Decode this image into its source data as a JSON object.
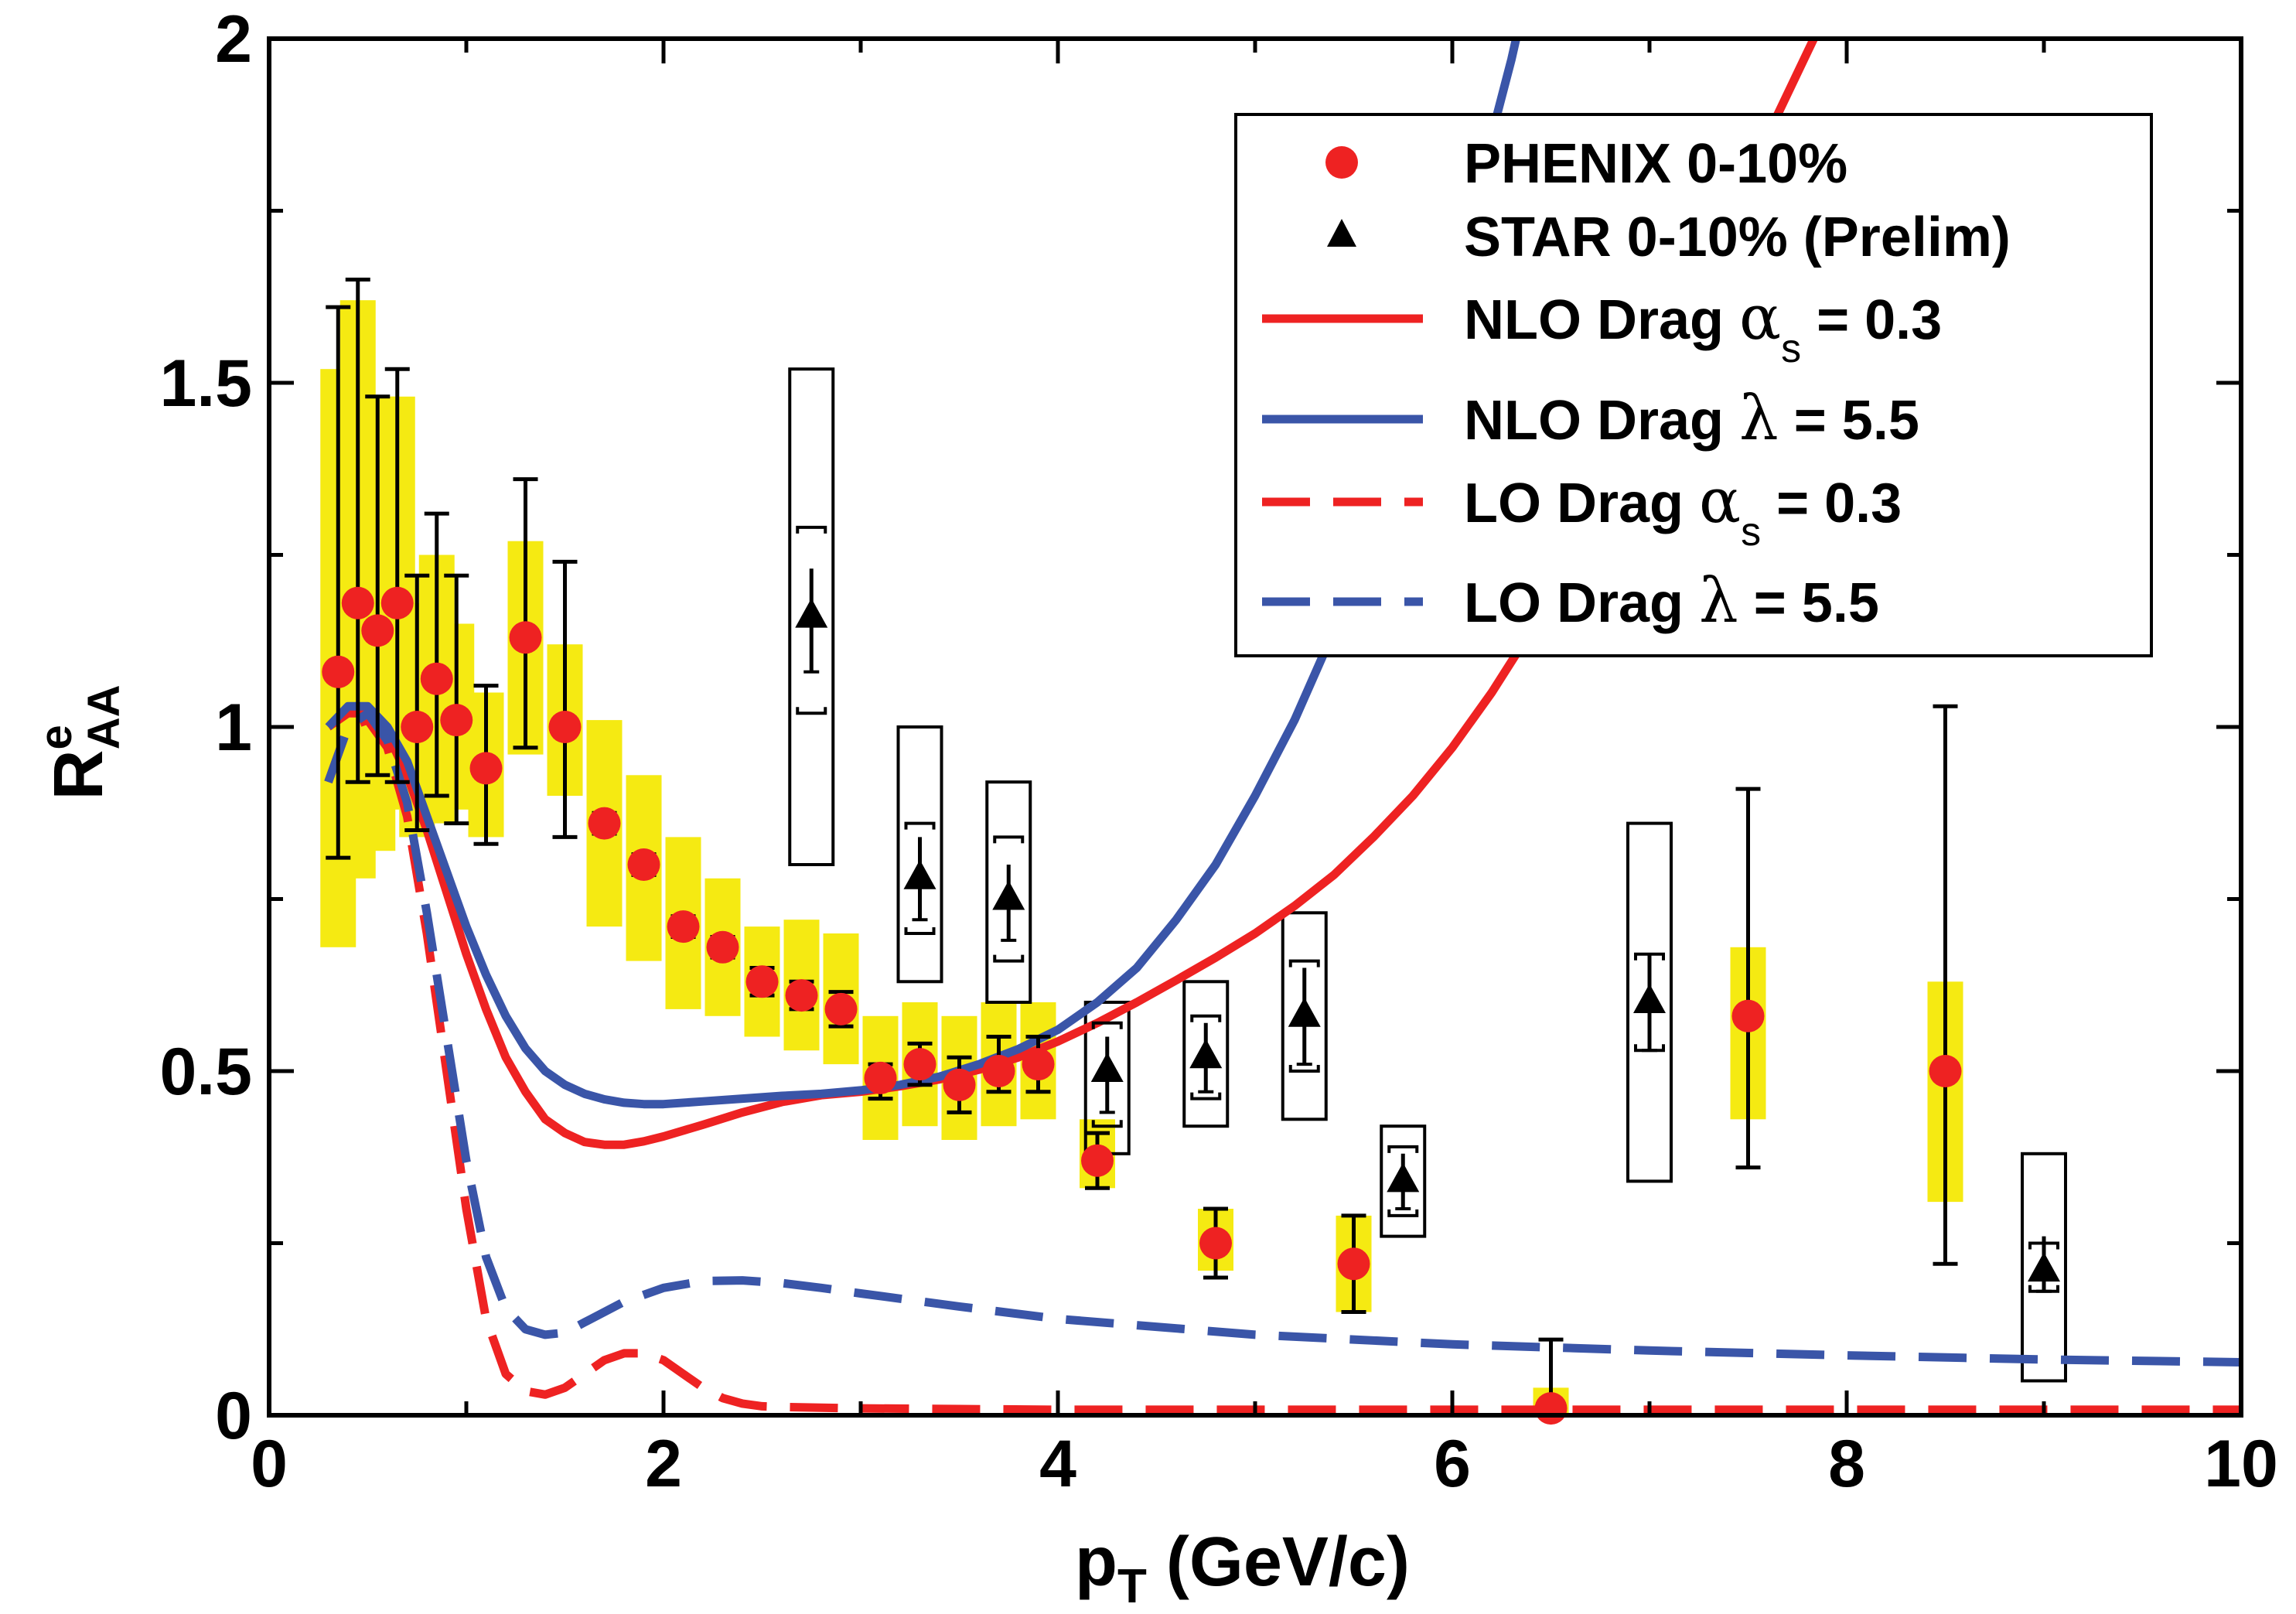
{
  "chart_data": {
    "type": "scatter",
    "title": "",
    "xlabel": {
      "main": "p",
      "sub": "T",
      "rest": " (GeV/c)"
    },
    "ylabel": {
      "main": "R",
      "sup": "e",
      "sub": "AA"
    },
    "xlim": [
      0,
      10
    ],
    "ylim": [
      0,
      2
    ],
    "xticks": [
      0,
      2,
      4,
      6,
      8,
      10
    ],
    "xtick_labels": [
      "0",
      "2",
      "4",
      "6",
      "8",
      "10"
    ],
    "yticks": [
      0,
      0.5,
      1,
      1.5,
      2
    ],
    "ytick_labels": [
      "0",
      "0.5",
      "1",
      "1.5",
      "2"
    ],
    "grid": false,
    "legend_position": "top-right",
    "colors": {
      "red": "#ee2222",
      "blue": "#3a55a8",
      "yellow": "#f5ea12",
      "black": "#000000"
    },
    "legend": [
      {
        "label": "PHENIX 0-10%",
        "marker": "circle",
        "color": "#ee2222"
      },
      {
        "label": "STAR 0-10% (Prelim)",
        "marker": "triangle",
        "color": "#000000"
      },
      {
        "label": "NLO Drag ",
        "greek": "α",
        "greek_sub": "s",
        "suffix": " = 0.3",
        "line": "solid",
        "color": "#ee2222"
      },
      {
        "label": "NLO Drag ",
        "greek": "λ",
        "suffix": " = 5.5",
        "line": "solid",
        "color": "#3a55a8"
      },
      {
        "label": "LO Drag ",
        "greek": "α",
        "greek_sub": "s",
        "suffix": " = 0.3",
        "line": "dashed",
        "color": "#ee2222"
      },
      {
        "label": "LO Drag ",
        "greek": "λ",
        "suffix": " = 5.5",
        "line": "dashed",
        "color": "#3a55a8"
      }
    ],
    "phenix": [
      {
        "x": 0.35,
        "y": 1.08,
        "stat": [
          0.81,
          1.61
        ],
        "sys": [
          0.68,
          1.52
        ]
      },
      {
        "x": 0.45,
        "y": 1.18,
        "stat": [
          0.92,
          1.65
        ],
        "sys": [
          0.78,
          1.62
        ]
      },
      {
        "x": 0.55,
        "y": 1.14,
        "stat": [
          0.93,
          1.48
        ],
        "sys": [
          0.82,
          1.48
        ]
      },
      {
        "x": 0.65,
        "y": 1.18,
        "stat": [
          0.92,
          1.52
        ],
        "sys": [
          0.88,
          1.48
        ]
      },
      {
        "x": 0.75,
        "y": 1.0,
        "stat": [
          0.85,
          1.22
        ],
        "sys": [
          0.84,
          1.18
        ]
      },
      {
        "x": 0.85,
        "y": 1.07,
        "stat": [
          0.9,
          1.31
        ],
        "sys": [
          0.86,
          1.25
        ]
      },
      {
        "x": 0.95,
        "y": 1.01,
        "stat": [
          0.86,
          1.22
        ],
        "sys": [
          0.88,
          1.15
        ]
      },
      {
        "x": 1.1,
        "y": 0.94,
        "stat": [
          0.83,
          1.06
        ],
        "sys": [
          0.84,
          1.05
        ]
      },
      {
        "x": 1.3,
        "y": 1.13,
        "stat": [
          0.97,
          1.36
        ],
        "sys": [
          0.96,
          1.27
        ]
      },
      {
        "x": 1.5,
        "y": 1.0,
        "stat": [
          0.84,
          1.24
        ],
        "sys": [
          0.9,
          1.12
        ]
      },
      {
        "x": 1.7,
        "y": 0.86,
        "stat": [
          0.845,
          0.875
        ],
        "sys": [
          0.71,
          1.01
        ]
      },
      {
        "x": 1.9,
        "y": 0.8,
        "stat": [
          0.785,
          0.815
        ],
        "sys": [
          0.66,
          0.93
        ]
      },
      {
        "x": 2.1,
        "y": 0.71,
        "stat": [
          0.695,
          0.725
        ],
        "sys": [
          0.59,
          0.84
        ]
      },
      {
        "x": 2.3,
        "y": 0.68,
        "stat": [
          0.665,
          0.695
        ],
        "sys": [
          0.58,
          0.78
        ]
      },
      {
        "x": 2.5,
        "y": 0.63,
        "stat": [
          0.61,
          0.65
        ],
        "sys": [
          0.55,
          0.71
        ]
      },
      {
        "x": 2.7,
        "y": 0.61,
        "stat": [
          0.59,
          0.63
        ],
        "sys": [
          0.53,
          0.72
        ]
      },
      {
        "x": 2.9,
        "y": 0.59,
        "stat": [
          0.565,
          0.615
        ],
        "sys": [
          0.51,
          0.7
        ]
      },
      {
        "x": 3.1,
        "y": 0.49,
        "stat": [
          0.46,
          0.51
        ],
        "sys": [
          0.4,
          0.58
        ]
      },
      {
        "x": 3.3,
        "y": 0.51,
        "stat": [
          0.48,
          0.54
        ],
        "sys": [
          0.42,
          0.6
        ]
      },
      {
        "x": 3.5,
        "y": 0.48,
        "stat": [
          0.44,
          0.52
        ],
        "sys": [
          0.4,
          0.58
        ]
      },
      {
        "x": 3.7,
        "y": 0.5,
        "stat": [
          0.47,
          0.55
        ],
        "sys": [
          0.42,
          0.6
        ]
      },
      {
        "x": 3.9,
        "y": 0.51,
        "stat": [
          0.47,
          0.55
        ],
        "sys": [
          0.43,
          0.6
        ]
      },
      {
        "x": 4.2,
        "y": 0.37,
        "stat": [
          0.33,
          0.41
        ],
        "sys": [
          0.33,
          0.43
        ]
      },
      {
        "x": 4.8,
        "y": 0.25,
        "stat": [
          0.2,
          0.3
        ],
        "sys": [
          0.21,
          0.3
        ]
      },
      {
        "x": 5.5,
        "y": 0.22,
        "stat": [
          0.15,
          0.29
        ],
        "sys": [
          0.15,
          0.29
        ]
      },
      {
        "x": 6.5,
        "y": 0.01,
        "stat": [
          0.0,
          0.11
        ],
        "sys": [
          0.0,
          0.04
        ]
      },
      {
        "x": 7.5,
        "y": 0.58,
        "stat": [
          0.36,
          0.91
        ],
        "sys": [
          0.43,
          0.68
        ]
      },
      {
        "x": 8.5,
        "y": 0.5,
        "stat": [
          0.22,
          1.03
        ],
        "sys": [
          0.31,
          0.63
        ]
      }
    ],
    "star": [
      {
        "x": 2.75,
        "y": 1.16,
        "stat": [
          1.08,
          1.23
        ],
        "sys": [
          1.02,
          1.29
        ],
        "box": [
          0.8,
          1.52
        ]
      },
      {
        "x": 3.3,
        "y": 0.78,
        "stat": [
          0.72,
          0.84
        ],
        "sys": [
          0.7,
          0.86
        ],
        "box": [
          0.63,
          1.0
        ]
      },
      {
        "x": 3.75,
        "y": 0.75,
        "stat": [
          0.69,
          0.8
        ],
        "sys": [
          0.66,
          0.84
        ],
        "box": [
          0.6,
          0.92
        ]
      },
      {
        "x": 4.25,
        "y": 0.5,
        "stat": [
          0.44,
          0.55
        ],
        "sys": [
          0.42,
          0.57
        ],
        "box": [
          0.38,
          0.6
        ]
      },
      {
        "x": 4.75,
        "y": 0.52,
        "stat": [
          0.47,
          0.57
        ],
        "sys": [
          0.46,
          0.58
        ],
        "box": [
          0.42,
          0.63
        ]
      },
      {
        "x": 5.25,
        "y": 0.58,
        "stat": [
          0.51,
          0.65
        ],
        "sys": [
          0.5,
          0.66
        ],
        "box": [
          0.43,
          0.73
        ]
      },
      {
        "x": 5.75,
        "y": 0.34,
        "stat": [
          0.3,
          0.38
        ],
        "sys": [
          0.29,
          0.39
        ],
        "box": [
          0.26,
          0.42
        ]
      },
      {
        "x": 7.0,
        "y": 0.6,
        "stat": [
          0.53,
          0.67
        ],
        "sys": [
          0.53,
          0.67
        ],
        "box": [
          0.34,
          0.86
        ]
      },
      {
        "x": 9.0,
        "y": 0.21,
        "stat": [
          0.18,
          0.26
        ],
        "sys": [
          0.18,
          0.25
        ],
        "box": [
          0.05,
          0.38
        ]
      }
    ],
    "curves": [
      {
        "name": "NLO Drag alpha_s = 0.3",
        "style": "solid",
        "color": "#ee2222",
        "x": [
          0.3,
          0.4,
          0.5,
          0.6,
          0.7,
          0.8,
          0.9,
          1.0,
          1.1,
          1.2,
          1.3,
          1.4,
          1.5,
          1.6,
          1.7,
          1.8,
          1.9,
          2.0,
          2.2,
          2.4,
          2.6,
          2.8,
          3.0,
          3.2,
          3.4,
          3.6,
          3.8,
          4.0,
          4.2,
          4.4,
          4.6,
          4.8,
          5.0,
          5.2,
          5.4,
          5.6,
          5.8,
          6.0,
          6.2,
          6.4,
          6.6,
          6.8,
          7.0,
          7.2,
          7.4,
          7.6,
          7.8,
          8.0,
          8.1
        ],
        "y": [
          1.0,
          1.02,
          1.02,
          0.99,
          0.93,
          0.85,
          0.76,
          0.67,
          0.59,
          0.52,
          0.47,
          0.43,
          0.41,
          0.397,
          0.393,
          0.393,
          0.398,
          0.405,
          0.422,
          0.44,
          0.455,
          0.465,
          0.47,
          0.478,
          0.488,
          0.502,
          0.52,
          0.543,
          0.57,
          0.6,
          0.632,
          0.665,
          0.7,
          0.74,
          0.785,
          0.84,
          0.9,
          0.97,
          1.05,
          1.14,
          1.24,
          1.35,
          1.47,
          1.6,
          1.73,
          1.86,
          1.98,
          2.1,
          2.16
        ]
      },
      {
        "name": "NLO Drag lambda = 5.5",
        "style": "solid",
        "color": "#3a55a8",
        "x": [
          0.3,
          0.4,
          0.5,
          0.6,
          0.7,
          0.8,
          0.9,
          1.0,
          1.1,
          1.2,
          1.3,
          1.4,
          1.5,
          1.6,
          1.7,
          1.8,
          1.9,
          2.0,
          2.2,
          2.4,
          2.6,
          2.8,
          3.0,
          3.2,
          3.4,
          3.6,
          3.8,
          4.0,
          4.2,
          4.4,
          4.6,
          4.8,
          5.0,
          5.2,
          5.4,
          5.6,
          5.8,
          6.0,
          6.2,
          6.3,
          6.45
        ],
        "y": [
          1.0,
          1.03,
          1.03,
          1.0,
          0.95,
          0.87,
          0.79,
          0.71,
          0.64,
          0.58,
          0.533,
          0.5,
          0.48,
          0.467,
          0.459,
          0.454,
          0.452,
          0.452,
          0.456,
          0.46,
          0.464,
          0.467,
          0.472,
          0.48,
          0.492,
          0.51,
          0.532,
          0.56,
          0.6,
          0.65,
          0.72,
          0.8,
          0.9,
          1.01,
          1.14,
          1.29,
          1.46,
          1.65,
          1.86,
          1.97,
          2.16
        ]
      },
      {
        "name": "LO Drag alpha_s = 0.3",
        "style": "dashed",
        "color": "#ee2222",
        "x": [
          0.3,
          0.4,
          0.5,
          0.6,
          0.7,
          0.8,
          0.9,
          1.0,
          1.1,
          1.2,
          1.3,
          1.4,
          1.5,
          1.6,
          1.7,
          1.8,
          1.9,
          2.0,
          2.1,
          2.2,
          2.3,
          2.4,
          2.5,
          2.6,
          2.8,
          3.0,
          3.5,
          4.0,
          5.0,
          6.0,
          7.0,
          8.0,
          9.0,
          10.0
        ],
        "y": [
          0.92,
          1.0,
          1.01,
          0.97,
          0.87,
          0.7,
          0.5,
          0.3,
          0.14,
          0.06,
          0.035,
          0.03,
          0.04,
          0.06,
          0.08,
          0.09,
          0.09,
          0.08,
          0.06,
          0.04,
          0.025,
          0.017,
          0.013,
          0.012,
          0.011,
          0.01,
          0.009,
          0.008,
          0.008,
          0.008,
          0.008,
          0.008,
          0.008,
          0.008
        ]
      },
      {
        "name": "LO Drag lambda = 5.5",
        "style": "dashed",
        "color": "#3a55a8",
        "x": [
          0.3,
          0.4,
          0.5,
          0.6,
          0.7,
          0.8,
          0.9,
          1.0,
          1.1,
          1.2,
          1.3,
          1.4,
          1.5,
          1.6,
          1.7,
          1.8,
          1.9,
          2.0,
          2.2,
          2.4,
          2.6,
          2.8,
          3.0,
          3.5,
          4.0,
          5.0,
          6.0,
          7.0,
          8.0,
          9.0,
          10.0
        ],
        "y": [
          0.92,
          1.0,
          1.02,
          0.98,
          0.89,
          0.73,
          0.55,
          0.37,
          0.23,
          0.155,
          0.125,
          0.117,
          0.12,
          0.135,
          0.15,
          0.165,
          0.175,
          0.185,
          0.195,
          0.196,
          0.192,
          0.185,
          0.177,
          0.158,
          0.14,
          0.117,
          0.103,
          0.094,
          0.087,
          0.081,
          0.077
        ]
      }
    ]
  }
}
